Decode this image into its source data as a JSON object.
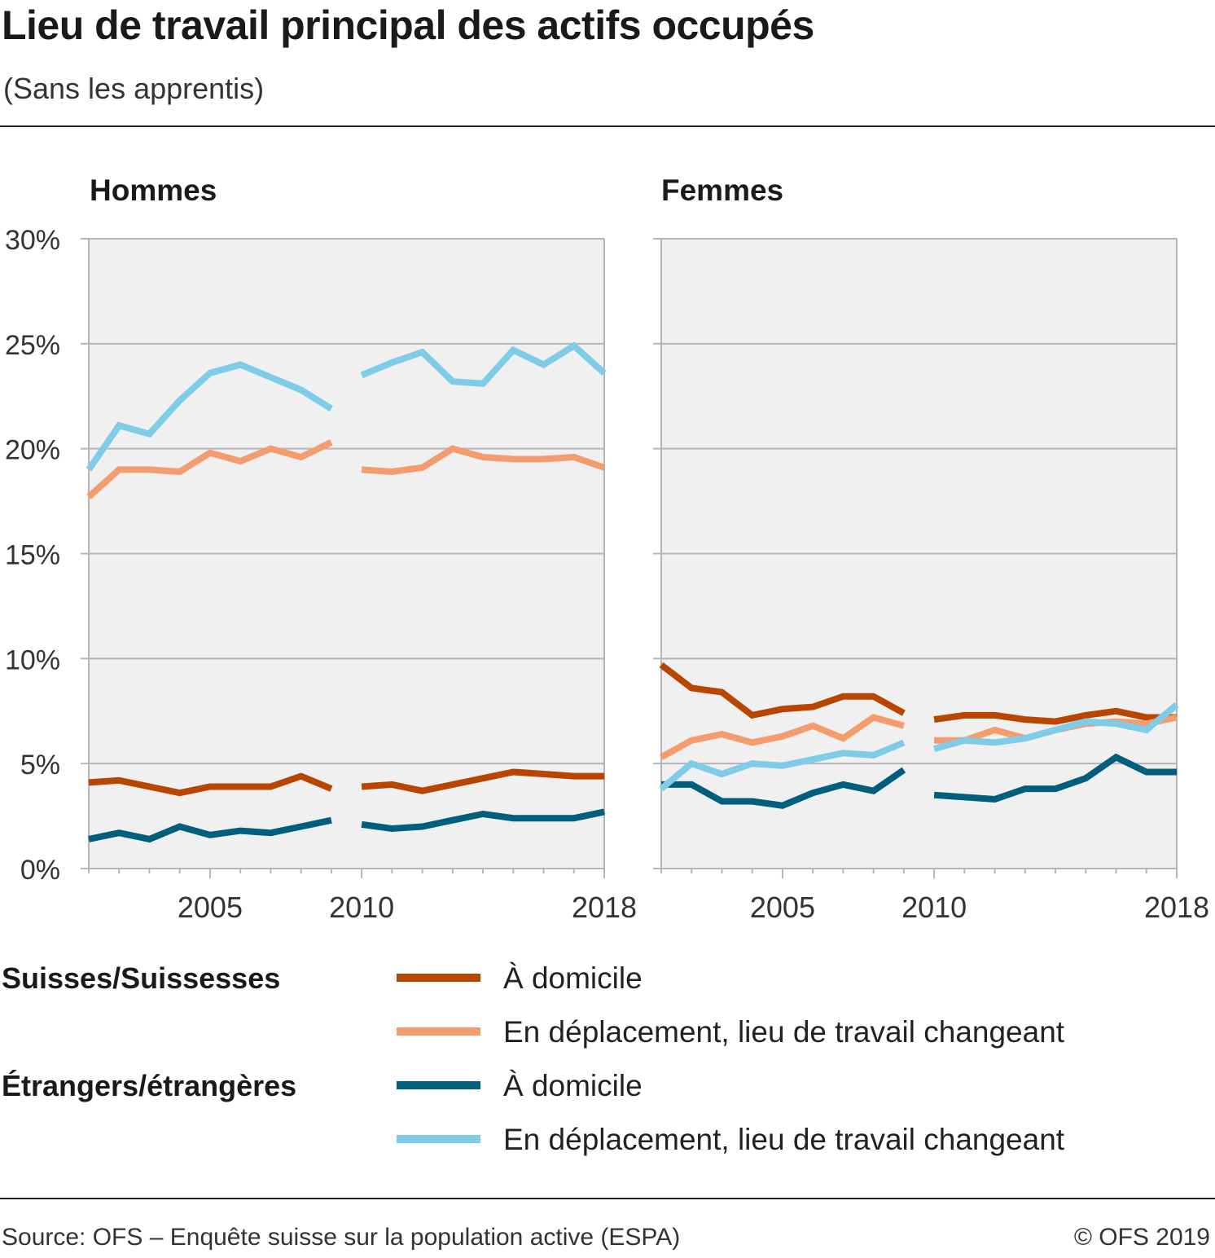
{
  "title": "Lieu de travail principal des actifs occupés",
  "subtitle": "(Sans les apprentis)",
  "source": "Source: OFS – Enquête suisse sur la population active (ESPA)",
  "copyright": "© OFS 2019",
  "colors": {
    "ch_home": "#B84600",
    "ch_travel": "#F49C6E",
    "fo_home": "#005F7D",
    "fo_travel": "#7FCCE8",
    "plot_bg": "#F0F0F0",
    "grid": "#B5B5B5"
  },
  "legend": {
    "groups": [
      {
        "label": "Suisses/Suissesses",
        "items": [
          {
            "label": "À domicile",
            "color": "#B84600"
          },
          {
            "label": "En déplacement, lieu de travail changeant",
            "color": "#F49C6E"
          }
        ]
      },
      {
        "label": "Étrangers/étrangères",
        "items": [
          {
            "label": "À domicile",
            "color": "#005F7D"
          },
          {
            "label": "En déplacement, lieu de travail changeant",
            "color": "#7FCCE8"
          }
        ]
      }
    ]
  },
  "chart_data": [
    {
      "type": "line",
      "title": "Hommes",
      "x": [
        2001,
        2002,
        2003,
        2004,
        2005,
        2006,
        2007,
        2008,
        2009,
        2010,
        2011,
        2012,
        2013,
        2014,
        2015,
        2016,
        2017,
        2018
      ],
      "xtick_labels": [
        "2005",
        "2010",
        "2018"
      ],
      "ytick_labels": [
        "0%",
        "5%",
        "10%",
        "15%",
        "20%",
        "25%",
        "30%"
      ],
      "ylim": [
        0,
        30
      ],
      "grid": true,
      "series": [
        {
          "name": "Suisses/Suissesses – À domicile",
          "color": "#B84600",
          "values": [
            4.1,
            4.2,
            3.9,
            3.6,
            3.9,
            3.9,
            3.9,
            4.4,
            3.8,
            3.9,
            4.0,
            3.7,
            4.0,
            4.3,
            4.6,
            4.5,
            4.4,
            4.4
          ]
        },
        {
          "name": "Suisses/Suissesses – En déplacement, lieu de travail changeant",
          "color": "#F49C6E",
          "values": [
            17.7,
            19.0,
            19.0,
            18.9,
            19.8,
            19.4,
            20.0,
            19.6,
            20.3,
            19.0,
            18.9,
            19.1,
            20.0,
            19.6,
            19.5,
            19.5,
            19.6,
            19.1
          ]
        },
        {
          "name": "Étrangers/étrangères – À domicile",
          "color": "#005F7D",
          "values": [
            1.4,
            1.7,
            1.4,
            2.0,
            1.6,
            1.8,
            1.7,
            2.0,
            2.3,
            2.1,
            1.9,
            2.0,
            2.3,
            2.6,
            2.4,
            2.4,
            2.4,
            2.7
          ]
        },
        {
          "name": "Étrangers/étrangères – En déplacement, lieu de travail changeant",
          "color": "#7FCCE8",
          "values": [
            19.0,
            21.1,
            20.7,
            22.3,
            23.6,
            24.0,
            23.4,
            22.8,
            21.9,
            23.5,
            24.1,
            24.6,
            23.2,
            23.1,
            24.7,
            24.0,
            24.9,
            23.6
          ]
        }
      ]
    },
    {
      "type": "line",
      "title": "Femmes",
      "x": [
        2001,
        2002,
        2003,
        2004,
        2005,
        2006,
        2007,
        2008,
        2009,
        2010,
        2011,
        2012,
        2013,
        2014,
        2015,
        2016,
        2017,
        2018
      ],
      "xtick_labels": [
        "2005",
        "2010",
        "2018"
      ],
      "ytick_labels": [],
      "ylim": [
        0,
        30
      ],
      "grid": true,
      "series": [
        {
          "name": "Suisses/Suissesses – À domicile",
          "color": "#B84600",
          "values": [
            9.7,
            8.6,
            8.4,
            7.3,
            7.6,
            7.7,
            8.2,
            8.2,
            7.4,
            7.1,
            7.3,
            7.3,
            7.1,
            7.0,
            7.3,
            7.5,
            7.2,
            7.2
          ]
        },
        {
          "name": "Suisses/Suissesses – En déplacement, lieu de travail changeant",
          "color": "#F49C6E",
          "values": [
            5.3,
            6.1,
            6.4,
            6.0,
            6.3,
            6.8,
            6.2,
            7.2,
            6.8,
            6.1,
            6.1,
            6.6,
            6.2,
            6.6,
            6.9,
            7.0,
            6.9,
            7.2
          ]
        },
        {
          "name": "Étrangers/étrangères – À domicile",
          "color": "#005F7D",
          "values": [
            4.0,
            4.0,
            3.2,
            3.2,
            3.0,
            3.6,
            4.0,
            3.7,
            4.7,
            3.5,
            3.4,
            3.3,
            3.8,
            3.8,
            4.3,
            5.3,
            4.6,
            4.6
          ]
        },
        {
          "name": "Étrangers/étrangères – En déplacement, lieu de travail changeant",
          "color": "#7FCCE8",
          "values": [
            3.8,
            5.0,
            4.5,
            5.0,
            4.9,
            5.2,
            5.5,
            5.4,
            6.0,
            5.7,
            6.1,
            6.0,
            6.2,
            6.6,
            7.0,
            6.9,
            6.6,
            7.8
          ]
        }
      ]
    }
  ]
}
